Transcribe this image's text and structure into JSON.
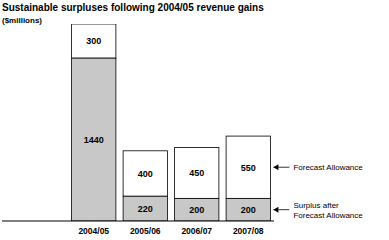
{
  "chart_data": {
    "type": "bar",
    "title": "Sustainable surpluses following 2004/05 revenue gains",
    "subtitle": "($millions)",
    "categories": [
      "2004/05",
      "2005/06",
      "2006/07",
      "2007/08"
    ],
    "series": [
      {
        "name": "Surplus after Forecast Allowance",
        "color": "#c8c8c8",
        "values": [
          1440,
          220,
          200,
          200
        ]
      },
      {
        "name": "Forecast Allowance",
        "color": "#ffffff",
        "values": [
          300,
          400,
          450,
          550
        ]
      }
    ],
    "stacked": true,
    "data_labels": true,
    "tick_labels": "x",
    "legend": "right",
    "ylim": [
      0,
      1740
    ]
  }
}
